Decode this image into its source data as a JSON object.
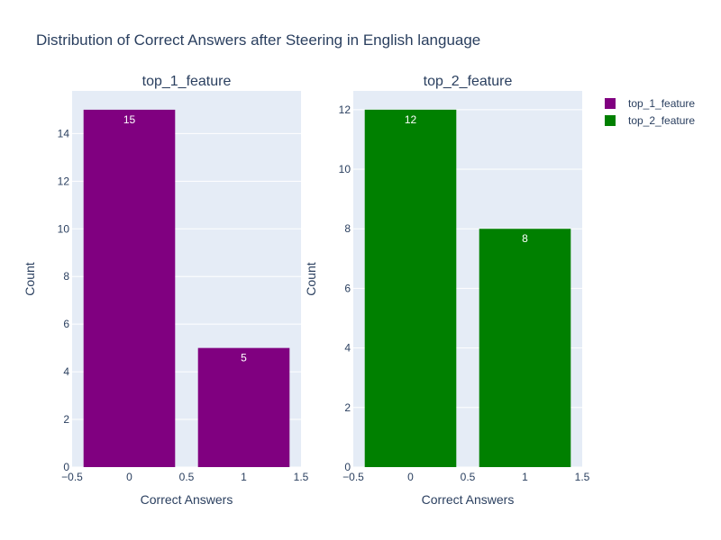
{
  "title": "Distribution of Correct Answers after Steering in English language",
  "colors": {
    "plot_bg": "#e5ecf6",
    "grid": "#ffffff",
    "text": "#2a3f5f"
  },
  "legend": {
    "placement": "top-right",
    "items": [
      {
        "label": "top_1_feature",
        "color": "#800080"
      },
      {
        "label": "top_2_feature",
        "color": "#008000"
      }
    ]
  },
  "chart_data": [
    {
      "type": "bar",
      "title": "top_1_feature",
      "xlabel": "Correct Answers",
      "ylabel": "Count",
      "x": [
        0,
        1
      ],
      "values": [
        15,
        5
      ],
      "color": "#800080",
      "xlim": [
        -0.5,
        1.5
      ],
      "ylim": [
        0,
        15.79
      ],
      "xticks": [
        "−0.5",
        "0",
        "0.5",
        "1",
        "1.5"
      ],
      "yticks": [
        0,
        2,
        4,
        6,
        8,
        10,
        12,
        14
      ],
      "grid": true
    },
    {
      "type": "bar",
      "title": "top_2_feature",
      "xlabel": "Correct Answers",
      "ylabel": "Count",
      "x": [
        0,
        1
      ],
      "values": [
        12,
        8
      ],
      "color": "#008000",
      "xlim": [
        -0.5,
        1.5
      ],
      "ylim": [
        0,
        12.63
      ],
      "xticks": [
        "−0.5",
        "0",
        "0.5",
        "1",
        "1.5"
      ],
      "yticks": [
        0,
        2,
        4,
        6,
        8,
        10,
        12
      ],
      "grid": true
    }
  ]
}
